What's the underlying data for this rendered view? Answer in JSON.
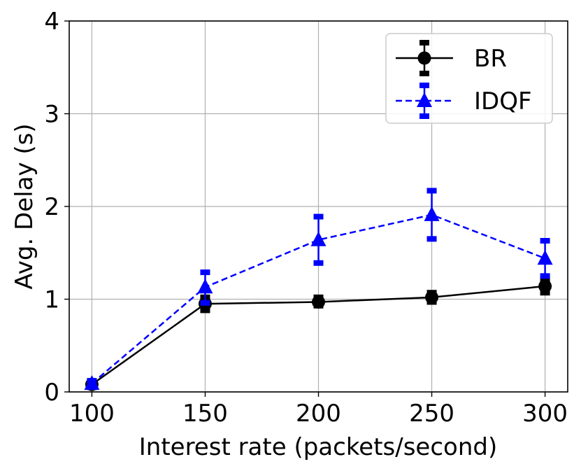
{
  "chart_data": {
    "type": "line",
    "title": "",
    "xlabel": "Interest rate (packets/second)",
    "ylabel": "Avg. Delay (s)",
    "x": [
      100,
      150,
      200,
      250,
      300
    ],
    "xlim": [
      90,
      310
    ],
    "ylim": [
      0,
      4
    ],
    "x_ticks": [
      100,
      150,
      200,
      250,
      300
    ],
    "y_ticks": [
      0,
      1,
      2,
      3,
      4
    ],
    "grid": true,
    "legend_position": "top-right",
    "series": [
      {
        "name": "BR",
        "color": "#000000",
        "line_style": "solid",
        "marker": "circle",
        "values": [
          0.08,
          0.95,
          0.97,
          1.02,
          1.14
        ],
        "err_low": [
          0.05,
          0.88,
          0.93,
          0.97,
          1.07
        ],
        "err_high": [
          0.11,
          1.02,
          1.02,
          1.07,
          1.21
        ]
      },
      {
        "name": "IDQF",
        "color": "#0000ff",
        "line_style": "dashed",
        "marker": "triangle",
        "values": [
          0.09,
          1.13,
          1.64,
          1.91,
          1.44
        ],
        "err_low": [
          0.06,
          0.96,
          1.39,
          1.65,
          1.25
        ],
        "err_high": [
          0.12,
          1.29,
          1.89,
          2.17,
          1.63
        ]
      }
    ]
  }
}
